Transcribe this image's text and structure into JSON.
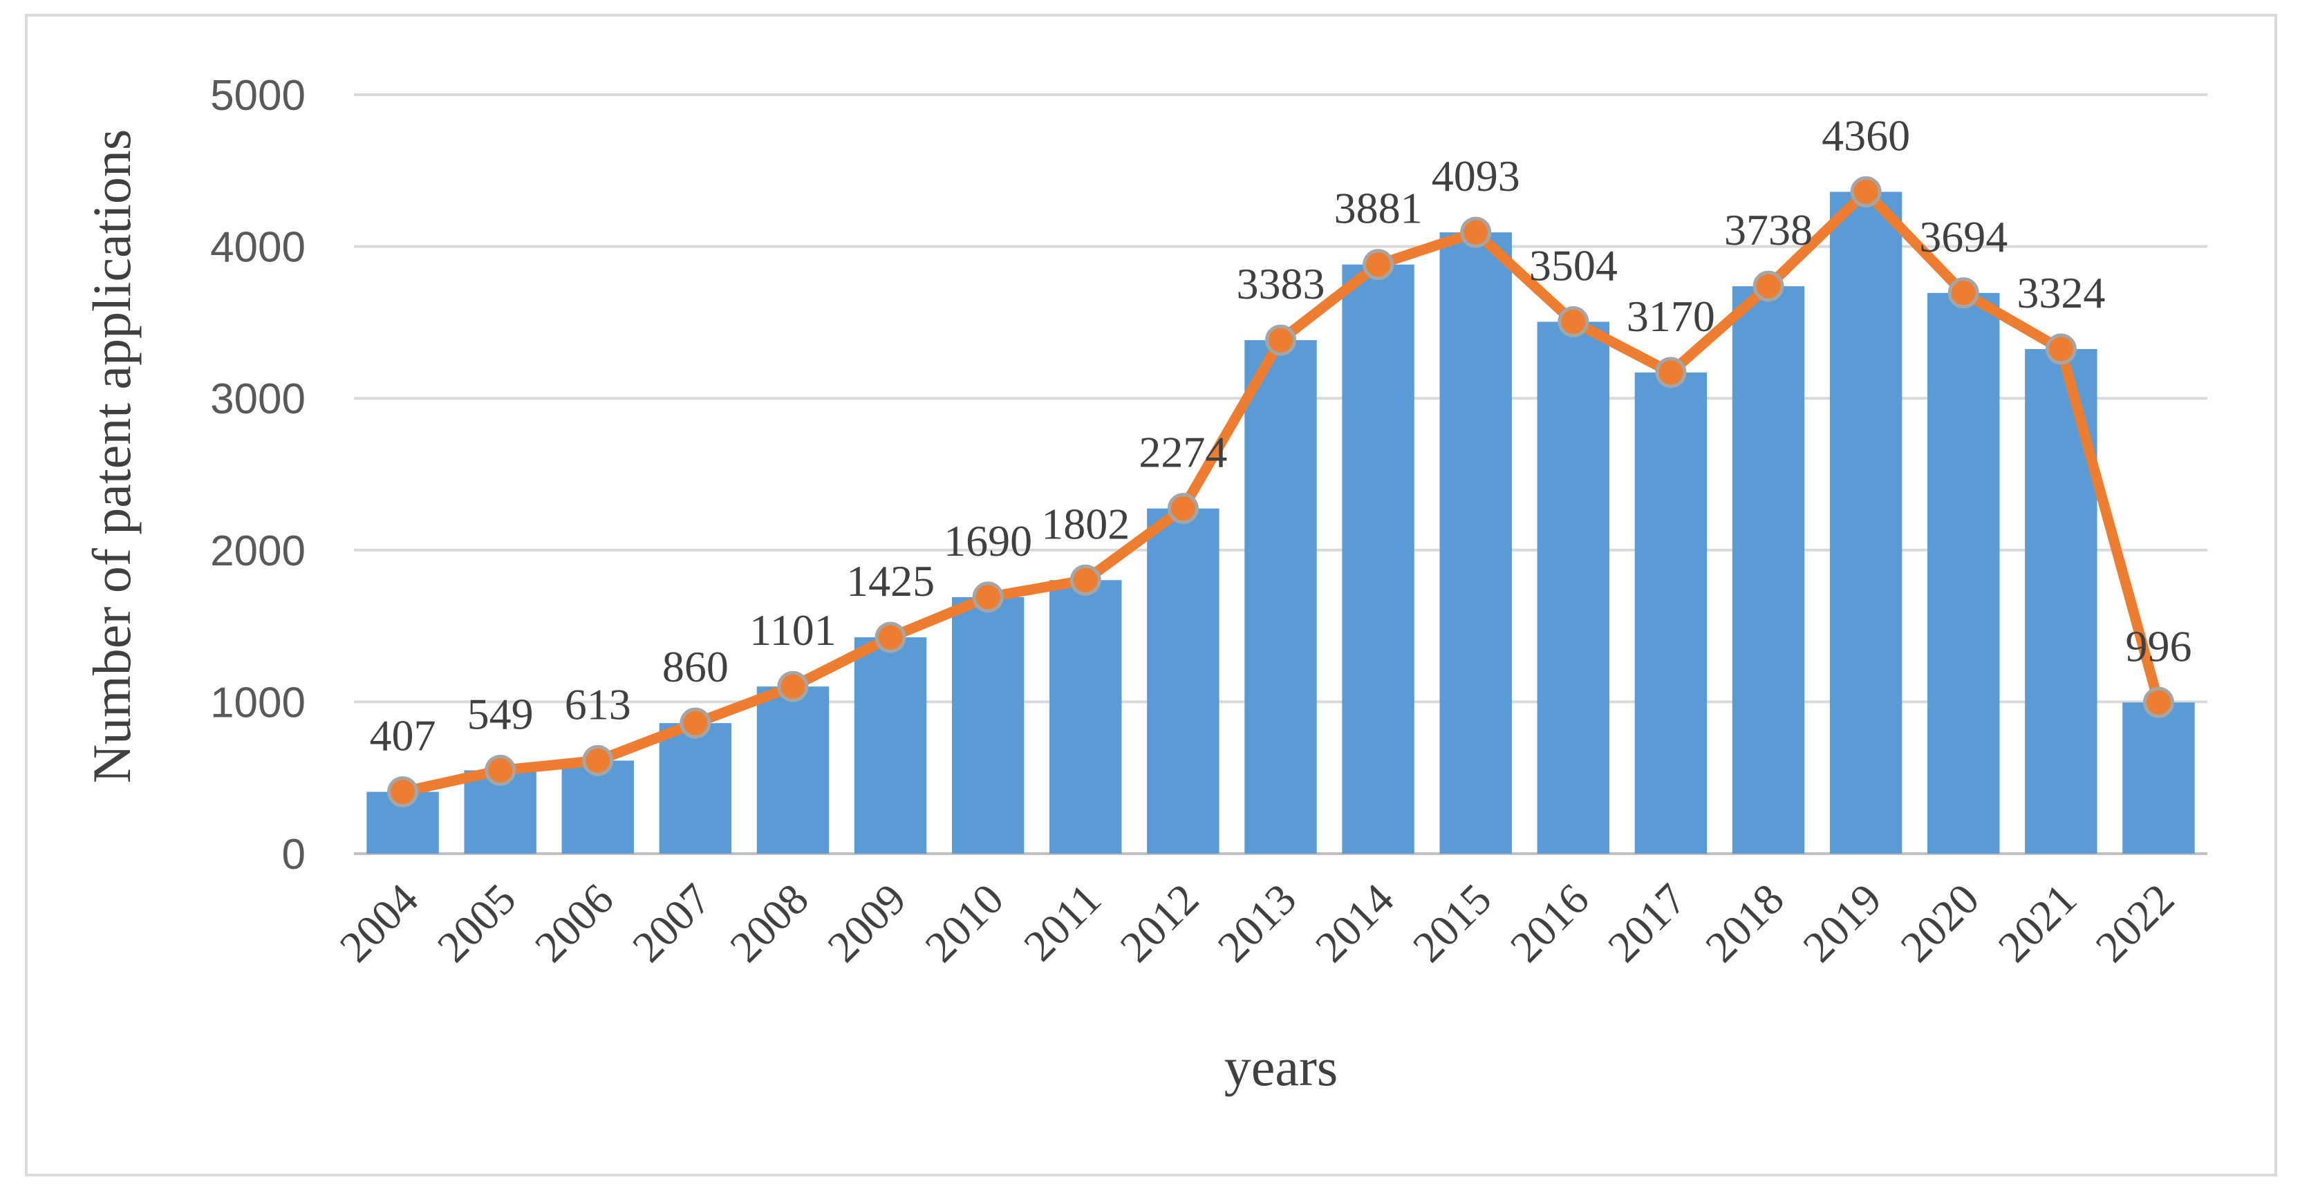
{
  "chart_data": {
    "type": "bar",
    "title": "",
    "categories": [
      "2004",
      "2005",
      "2006",
      "2007",
      "2008",
      "2009",
      "2010",
      "2011",
      "2012",
      "2013",
      "2014",
      "2015",
      "2016",
      "2017",
      "2018",
      "2019",
      "2020",
      "2021",
      "2022"
    ],
    "series": [
      {
        "name": "Number of patent applications (bars)",
        "type": "bar",
        "color": "#5b9bd5",
        "values": [
          407,
          549,
          613,
          860,
          1101,
          1425,
          1690,
          1802,
          2274,
          3383,
          3881,
          4093,
          3504,
          3170,
          3738,
          4360,
          3694,
          3324,
          996
        ]
      },
      {
        "name": "Number of patent applications (line)",
        "type": "line",
        "color": "#ed7d31",
        "marker_fill": "#ed7d31",
        "marker_edge": "#a5a5a5",
        "values": [
          407,
          549,
          613,
          860,
          1101,
          1425,
          1690,
          1802,
          2274,
          3383,
          3881,
          4093,
          3504,
          3170,
          3738,
          4360,
          3694,
          3324,
          996
        ]
      }
    ],
    "data_labels": [
      "407",
      "549",
      "613",
      "860",
      "1101",
      "1425",
      "1690",
      "1802",
      "2274",
      "3383",
      "3881",
      "4093",
      "3504",
      "3170",
      "3738",
      "4360",
      "3694",
      "3324",
      "996"
    ],
    "xlabel": "years",
    "ylabel": "Number of patent applications",
    "ylim": [
      0,
      5000
    ],
    "yticks": [
      "0",
      "1000",
      "2000",
      "3000",
      "4000",
      "5000"
    ],
    "grid": true,
    "legend": "none"
  }
}
